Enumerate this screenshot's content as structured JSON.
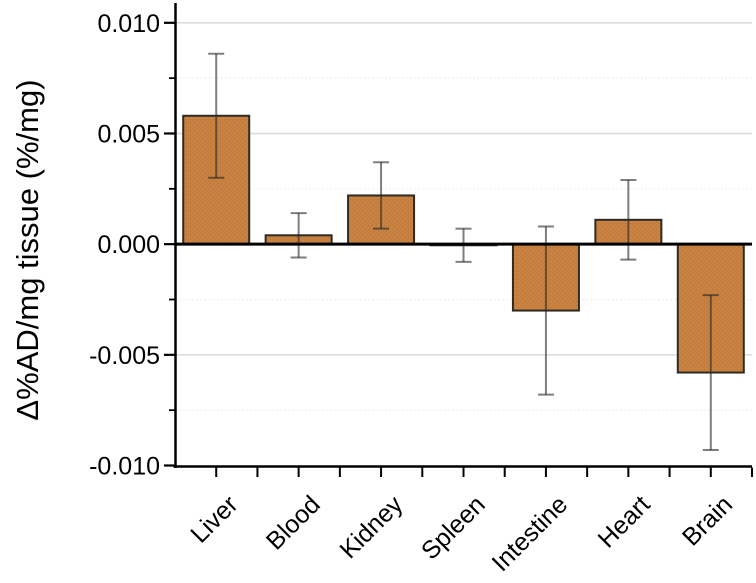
{
  "figure": {
    "background": "#ffffff"
  },
  "chart_data": {
    "type": "bar",
    "title": "",
    "categories": [
      "Liver",
      "Blood",
      "Kidney",
      "Spleen",
      "Intestine",
      "Heart",
      "Brain"
    ],
    "values": [
      0.0058,
      0.0004,
      0.0022,
      -5e-05,
      -0.003,
      0.0011,
      -0.0058
    ],
    "errors": [
      0.0028,
      0.001,
      0.0015,
      0.00075,
      0.0038,
      0.0018,
      0.0035
    ],
    "error_bars": "symmetric with caps",
    "xlabel": "",
    "ylabel": "Δ%AD/mg tissue (%/mg)",
    "ylim": [
      -0.01,
      0.01085
    ],
    "yticks_major": [
      0.01,
      0.005,
      0.0,
      -0.005,
      -0.01
    ],
    "ytick_labels": [
      "0.010",
      "0.005",
      "0.000",
      "-0.005",
      "-0.010"
    ],
    "yticks_minor": [
      0.0075,
      0.0025,
      -0.0025,
      -0.0075
    ],
    "grid": "horizontal only: solid light lines at major ticks, faint dotted at minor ticks",
    "legend": "none",
    "x_label_rotation_deg": -45,
    "colors": {
      "bar_fill": "#c9823f",
      "bar_texture": "#b26f33",
      "bar_edge": "#2e2a24",
      "error_bar": "rgba(40,40,40,0.60)",
      "zero_line": "#000000",
      "axis": "#000000",
      "grid_major": "#dedede",
      "grid_minor": "#ececec",
      "tick_label": "#000000"
    }
  }
}
